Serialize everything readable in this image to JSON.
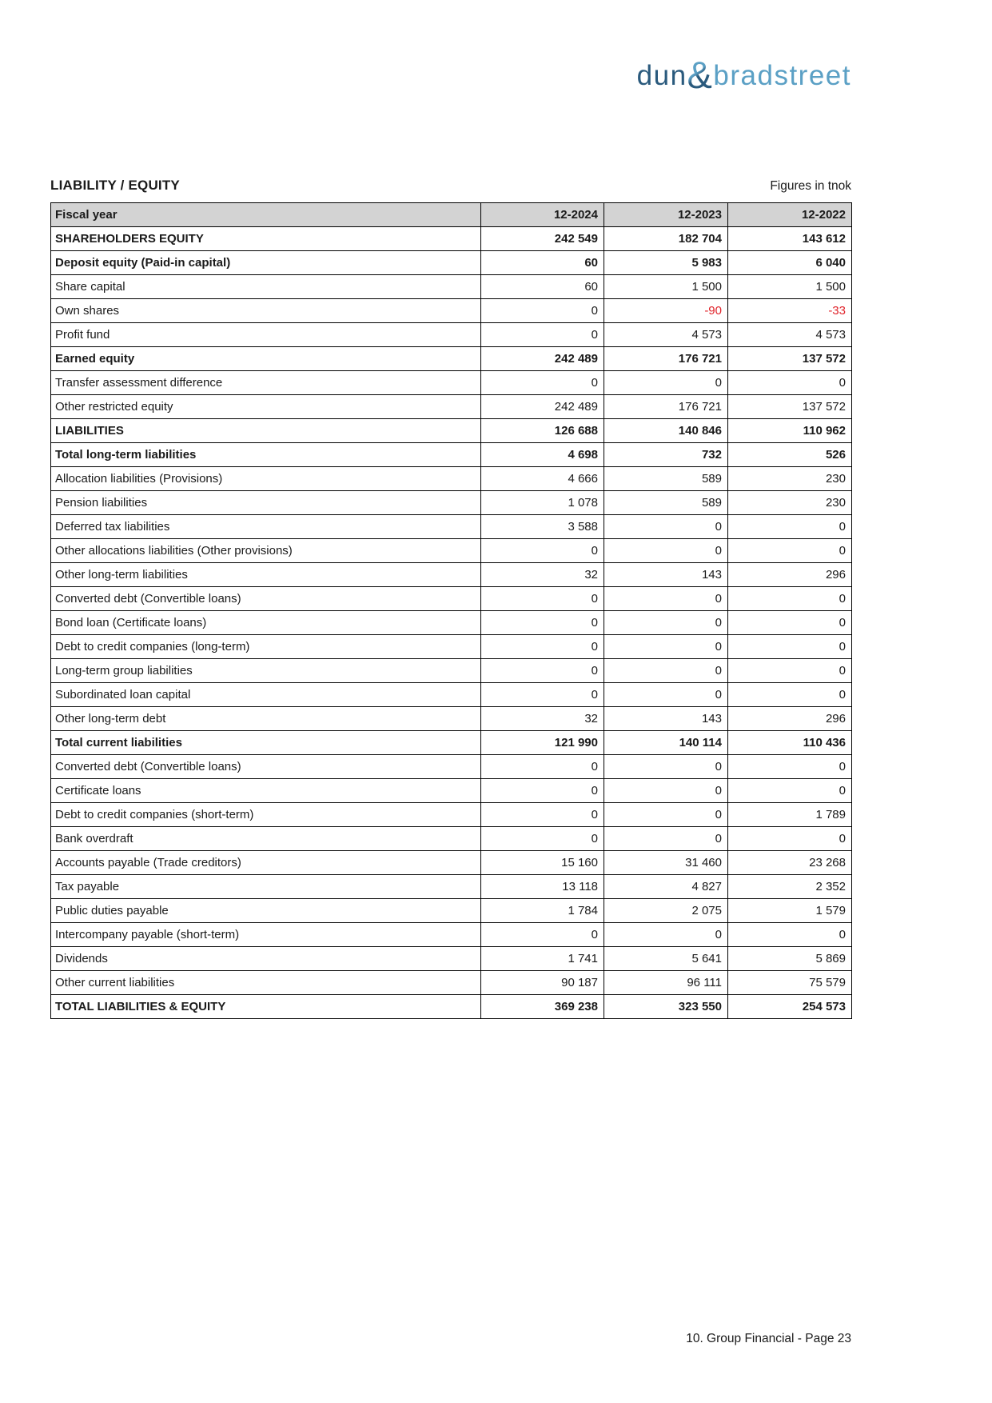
{
  "brand": {
    "word1": "dun",
    "ampersand": "&",
    "word2": "bradstreet",
    "color_dark": "#2a5a7d",
    "color_light": "#5ba0c5"
  },
  "header": {
    "title": "LIABILITY / EQUITY",
    "unit_note": "Figures in tnok"
  },
  "table": {
    "header_row": {
      "label": "Fiscal year",
      "years": [
        "12-2024",
        "12-2023",
        "12-2022"
      ]
    },
    "rows": [
      {
        "label": "SHAREHOLDERS EQUITY",
        "bold": true,
        "values": [
          "242 549",
          "182 704",
          "143 612"
        ]
      },
      {
        "label": "Deposit equity (Paid-in capital)",
        "bold": true,
        "values": [
          "60",
          "5 983",
          "6 040"
        ]
      },
      {
        "label": "Share capital",
        "bold": false,
        "values": [
          "60",
          "1 500",
          "1 500"
        ]
      },
      {
        "label": "Own shares",
        "bold": false,
        "values": [
          "0",
          "-90",
          "-33"
        ]
      },
      {
        "label": "Profit fund",
        "bold": false,
        "values": [
          "0",
          "4 573",
          "4 573"
        ]
      },
      {
        "label": "Earned equity",
        "bold": true,
        "values": [
          "242 489",
          "176 721",
          "137 572"
        ]
      },
      {
        "label": "Transfer assessment difference",
        "bold": false,
        "values": [
          "0",
          "0",
          "0"
        ]
      },
      {
        "label": "Other restricted equity",
        "bold": false,
        "values": [
          "242 489",
          "176 721",
          "137 572"
        ]
      },
      {
        "label": "LIABILITIES",
        "bold": true,
        "values": [
          "126 688",
          "140 846",
          "110 962"
        ]
      },
      {
        "label": "Total long-term liabilities",
        "bold": true,
        "values": [
          "4 698",
          "732",
          "526"
        ]
      },
      {
        "label": "Allocation liabilities (Provisions)",
        "bold": false,
        "values": [
          "4 666",
          "589",
          "230"
        ]
      },
      {
        "label": "Pension liabilities",
        "bold": false,
        "values": [
          "1 078",
          "589",
          "230"
        ]
      },
      {
        "label": "Deferred tax liabilities",
        "bold": false,
        "values": [
          "3 588",
          "0",
          "0"
        ]
      },
      {
        "label": "Other allocations liabilities (Other provisions)",
        "bold": false,
        "values": [
          "0",
          "0",
          "0"
        ]
      },
      {
        "label": "Other long-term liabilities",
        "bold": false,
        "values": [
          "32",
          "143",
          "296"
        ]
      },
      {
        "label": "Converted debt (Convertible loans)",
        "bold": false,
        "values": [
          "0",
          "0",
          "0"
        ]
      },
      {
        "label": "Bond loan (Certificate loans)",
        "bold": false,
        "values": [
          "0",
          "0",
          "0"
        ]
      },
      {
        "label": "Debt to credit companies (long-term)",
        "bold": false,
        "values": [
          "0",
          "0",
          "0"
        ]
      },
      {
        "label": "Long-term group liabilities",
        "bold": false,
        "values": [
          "0",
          "0",
          "0"
        ]
      },
      {
        "label": "Subordinated loan capital",
        "bold": false,
        "values": [
          "0",
          "0",
          "0"
        ]
      },
      {
        "label": "Other long-term debt",
        "bold": false,
        "values": [
          "32",
          "143",
          "296"
        ]
      },
      {
        "label": "Total current liabilities",
        "bold": true,
        "values": [
          "121 990",
          "140 114",
          "110 436"
        ]
      },
      {
        "label": "Converted debt (Convertible loans)",
        "bold": false,
        "values": [
          "0",
          "0",
          "0"
        ]
      },
      {
        "label": "Certificate loans",
        "bold": false,
        "values": [
          "0",
          "0",
          "0"
        ]
      },
      {
        "label": "Debt to credit companies (short-term)",
        "bold": false,
        "values": [
          "0",
          "0",
          "1 789"
        ]
      },
      {
        "label": "Bank overdraft",
        "bold": false,
        "values": [
          "0",
          "0",
          "0"
        ]
      },
      {
        "label": "Accounts payable (Trade creditors)",
        "bold": false,
        "values": [
          "15 160",
          "31 460",
          "23 268"
        ]
      },
      {
        "label": "Tax payable",
        "bold": false,
        "values": [
          "13 118",
          "4 827",
          "2 352"
        ]
      },
      {
        "label": "Public duties payable",
        "bold": false,
        "values": [
          "1 784",
          "2 075",
          "1 579"
        ]
      },
      {
        "label": "Intercompany payable (short-term)",
        "bold": false,
        "values": [
          "0",
          "0",
          "0"
        ]
      },
      {
        "label": "Dividends",
        "bold": false,
        "values": [
          "1 741",
          "5 641",
          "5 869"
        ]
      },
      {
        "label": "Other current liabilities",
        "bold": false,
        "values": [
          "90 187",
          "96 111",
          "75 579"
        ]
      },
      {
        "label": "TOTAL LIABILITIES & EQUITY",
        "bold": true,
        "values": [
          "369 238",
          "323 550",
          "254 573"
        ]
      }
    ]
  },
  "footer": {
    "text": "10. Group Financial - Page 23"
  },
  "colors": {
    "header_bg": "#d3d3d3",
    "negative": "#e0242b",
    "border": "#000000"
  }
}
